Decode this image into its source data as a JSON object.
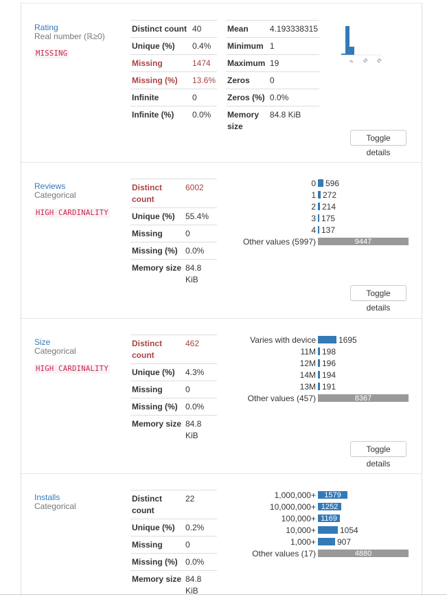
{
  "variables": [
    {
      "name": "Rating",
      "type": "Real number (ℝ≥0)",
      "badge": "MISSING",
      "stats1": [
        {
          "k": "Distinct count",
          "v": "40",
          "alert": false
        },
        {
          "k": "Unique (%)",
          "v": "0.4%",
          "alert": false
        },
        {
          "k": "Missing",
          "v": "1474",
          "alert": true
        },
        {
          "k": "Missing (%)",
          "v": "13.6%",
          "alert": true
        },
        {
          "k": "Infinite",
          "v": "0",
          "alert": false
        },
        {
          "k": "Infinite (%)",
          "v": "0.0%",
          "alert": false
        }
      ],
      "stats2": [
        {
          "k": "Mean",
          "v": "4.193338315"
        },
        {
          "k": "Minimum",
          "v": "1"
        },
        {
          "k": "Maximum",
          "v": "19"
        },
        {
          "k": "Zeros",
          "v": "0"
        },
        {
          "k": "Zeros (%)",
          "v": "0.0%"
        },
        {
          "k": "Memory size",
          "v": "84.8 KiB"
        }
      ],
      "toggle": "Toggle details"
    },
    {
      "name": "Reviews",
      "type": "Categorical",
      "badge": "HIGH CARDINALITY",
      "stats": [
        {
          "k": "Distinct count",
          "v": "6002",
          "alert": true
        },
        {
          "k": "Unique (%)",
          "v": "55.4%",
          "alert": false
        },
        {
          "k": "Missing",
          "v": "0",
          "alert": false
        },
        {
          "k": "Missing (%)",
          "v": "0.0%",
          "alert": false
        },
        {
          "k": "Memory size",
          "v": "84.8 KiB",
          "alert": false
        }
      ],
      "freq": [
        {
          "label": "0",
          "value": 596,
          "display": "596"
        },
        {
          "label": "1",
          "value": 272,
          "display": "272"
        },
        {
          "label": "2",
          "value": 214,
          "display": "214"
        },
        {
          "label": "3",
          "value": 175,
          "display": "175"
        },
        {
          "label": "4",
          "value": 137,
          "display": "137"
        },
        {
          "label": "Other values (5997)",
          "value": 9447,
          "display": "9447",
          "other": true
        }
      ],
      "toggle": "Toggle details"
    },
    {
      "name": "Size",
      "type": "Categorical",
      "badge": "HIGH CARDINALITY",
      "stats": [
        {
          "k": "Distinct count",
          "v": "462",
          "alert": true
        },
        {
          "k": "Unique (%)",
          "v": "4.3%",
          "alert": false
        },
        {
          "k": "Missing",
          "v": "0",
          "alert": false
        },
        {
          "k": "Missing (%)",
          "v": "0.0%",
          "alert": false
        },
        {
          "k": "Memory size",
          "v": "84.8 KiB",
          "alert": false
        }
      ],
      "freq": [
        {
          "label": "Varies with device",
          "value": 1695,
          "display": "1695"
        },
        {
          "label": "11M",
          "value": 198,
          "display": "198"
        },
        {
          "label": "12M",
          "value": 196,
          "display": "196"
        },
        {
          "label": "14M",
          "value": 194,
          "display": "194"
        },
        {
          "label": "13M",
          "value": 191,
          "display": "191"
        },
        {
          "label": "Other values (457)",
          "value": 8367,
          "display": "8367",
          "other": true
        }
      ],
      "toggle": "Toggle details"
    },
    {
      "name": "Installs",
      "type": "Categorical",
      "badge": "",
      "stats": [
        {
          "k": "Distinct count",
          "v": "22",
          "alert": false
        },
        {
          "k": "Unique (%)",
          "v": "0.2%",
          "alert": false
        },
        {
          "k": "Missing",
          "v": "0",
          "alert": false
        },
        {
          "k": "Missing (%)",
          "v": "0.0%",
          "alert": false
        },
        {
          "k": "Memory size",
          "v": "84.8 KiB",
          "alert": false
        }
      ],
      "freq": [
        {
          "label": "1,000,000+",
          "value": 1579,
          "display": "1579"
        },
        {
          "label": "10,000,000+",
          "value": 1252,
          "display": "1252"
        },
        {
          "label": "100,000+",
          "value": 1169,
          "display": "1169"
        },
        {
          "label": "10,000+",
          "value": 1054,
          "display": "1054"
        },
        {
          "label": "1,000+",
          "value": 907,
          "display": "907"
        },
        {
          "label": "Other values (17)",
          "value": 4880,
          "display": "4880",
          "other": true
        }
      ]
    }
  ],
  "colors": {
    "link": "#337ab7",
    "bar": "#337ab7",
    "other_bar": "#999999",
    "alert": "#a94442",
    "badge": "#c7254e"
  },
  "rating_histogram": {
    "x_ticks": [
      "5",
      "10",
      "15"
    ]
  }
}
